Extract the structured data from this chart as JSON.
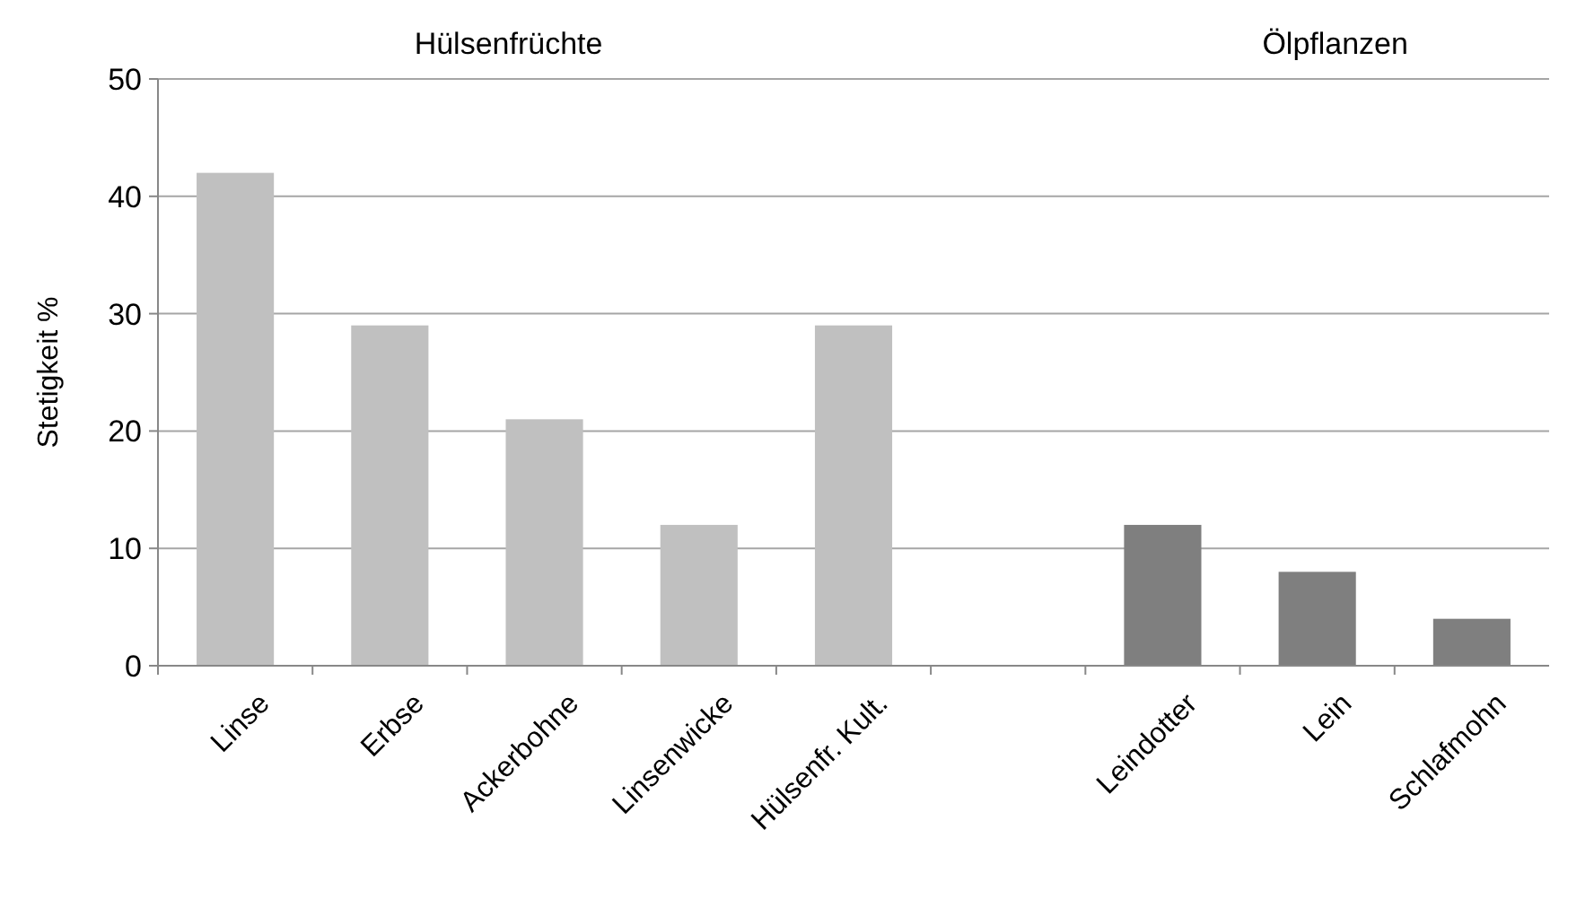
{
  "chart_data": {
    "type": "bar",
    "ylabel": "Stetigkeit %",
    "categories": [
      "Linse",
      "Erbse",
      "Ackerbohne",
      "Linsenwicke",
      "Hülsenfr. Kult.",
      null,
      "Leindotter",
      "Lein",
      "Schlafmohn"
    ],
    "values": [
      42,
      29,
      21,
      12,
      29,
      null,
      12,
      8,
      4
    ],
    "colors": [
      "#c0c0c0",
      "#c0c0c0",
      "#c0c0c0",
      "#c0c0c0",
      "#c0c0c0",
      null,
      "#7f7f7f",
      "#7f7f7f",
      "#7f7f7f"
    ],
    "ylim": [
      0,
      50
    ],
    "yticks": [
      0,
      10,
      20,
      30,
      40,
      50
    ],
    "grid": "y",
    "annotations": [
      "Hülsenfrüchte",
      "Ölpflanzen"
    ]
  }
}
